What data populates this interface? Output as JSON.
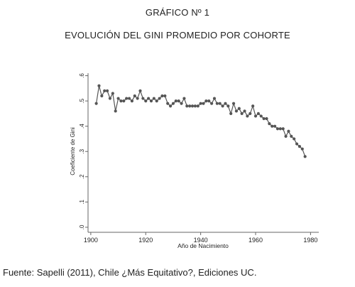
{
  "figure": {
    "label": "GRÁFICO Nº 1",
    "title": "EVOLUCIÓN DEL GINI PROMEDIO POR COHORTE",
    "source": "Fuente: Sapelli (2011), Chile ¿Más Equitativo?, Ediciones UC."
  },
  "chart_data": {
    "type": "line",
    "title": "EVOLUCIÓN DEL GINI PROMEDIO POR COHORTE",
    "xlabel": "Año de Nacimiento",
    "ylabel": "Coeficiente de Gini",
    "xlim": [
      1899,
      1983
    ],
    "ylim": [
      -0.02,
      0.61
    ],
    "xticks": [
      1900,
      1920,
      1940,
      1960,
      1980
    ],
    "xtick_labels": [
      "1900",
      "1920",
      "1940",
      "1960",
      "1980"
    ],
    "yticks": [
      0,
      0.1,
      0.2,
      0.3,
      0.4,
      0.5,
      0.6
    ],
    "ytick_labels": [
      ".0",
      ".1",
      ".2",
      ".3",
      ".4",
      ".5",
      ".6"
    ],
    "grid": false,
    "legend": "none",
    "color": "#555555",
    "series": [
      {
        "x": [
          1902,
          1903,
          1904,
          1905,
          1906,
          1907,
          1908,
          1909,
          1910,
          1911,
          1912,
          1913,
          1914,
          1915,
          1916,
          1917,
          1918,
          1919,
          1920,
          1921,
          1922,
          1923,
          1924,
          1925,
          1926,
          1927,
          1928,
          1929,
          1930,
          1931,
          1932,
          1933,
          1934,
          1935,
          1936,
          1937,
          1938,
          1939,
          1940,
          1941,
          1942,
          1943,
          1944,
          1945,
          1946,
          1947,
          1948,
          1949,
          1950,
          1951,
          1952,
          1953,
          1954,
          1955,
          1956,
          1957,
          1958,
          1959,
          1960,
          1961,
          1962,
          1963,
          1964,
          1965,
          1966,
          1967,
          1968,
          1969,
          1970,
          1971,
          1972,
          1973,
          1974,
          1975,
          1976,
          1977,
          1978
        ],
        "values": [
          0.49,
          0.56,
          0.52,
          0.54,
          0.54,
          0.51,
          0.53,
          0.46,
          0.51,
          0.5,
          0.5,
          0.51,
          0.51,
          0.5,
          0.52,
          0.51,
          0.54,
          0.51,
          0.5,
          0.51,
          0.5,
          0.51,
          0.5,
          0.51,
          0.52,
          0.52,
          0.49,
          0.48,
          0.49,
          0.5,
          0.5,
          0.49,
          0.51,
          0.48,
          0.48,
          0.48,
          0.48,
          0.48,
          0.49,
          0.49,
          0.5,
          0.5,
          0.49,
          0.51,
          0.49,
          0.49,
          0.48,
          0.49,
          0.48,
          0.45,
          0.49,
          0.46,
          0.47,
          0.45,
          0.46,
          0.44,
          0.45,
          0.48,
          0.44,
          0.45,
          0.44,
          0.43,
          0.43,
          0.41,
          0.4,
          0.4,
          0.39,
          0.39,
          0.39,
          0.36,
          0.38,
          0.36,
          0.35,
          0.33,
          0.32,
          0.31,
          0.28
        ]
      }
    ]
  }
}
